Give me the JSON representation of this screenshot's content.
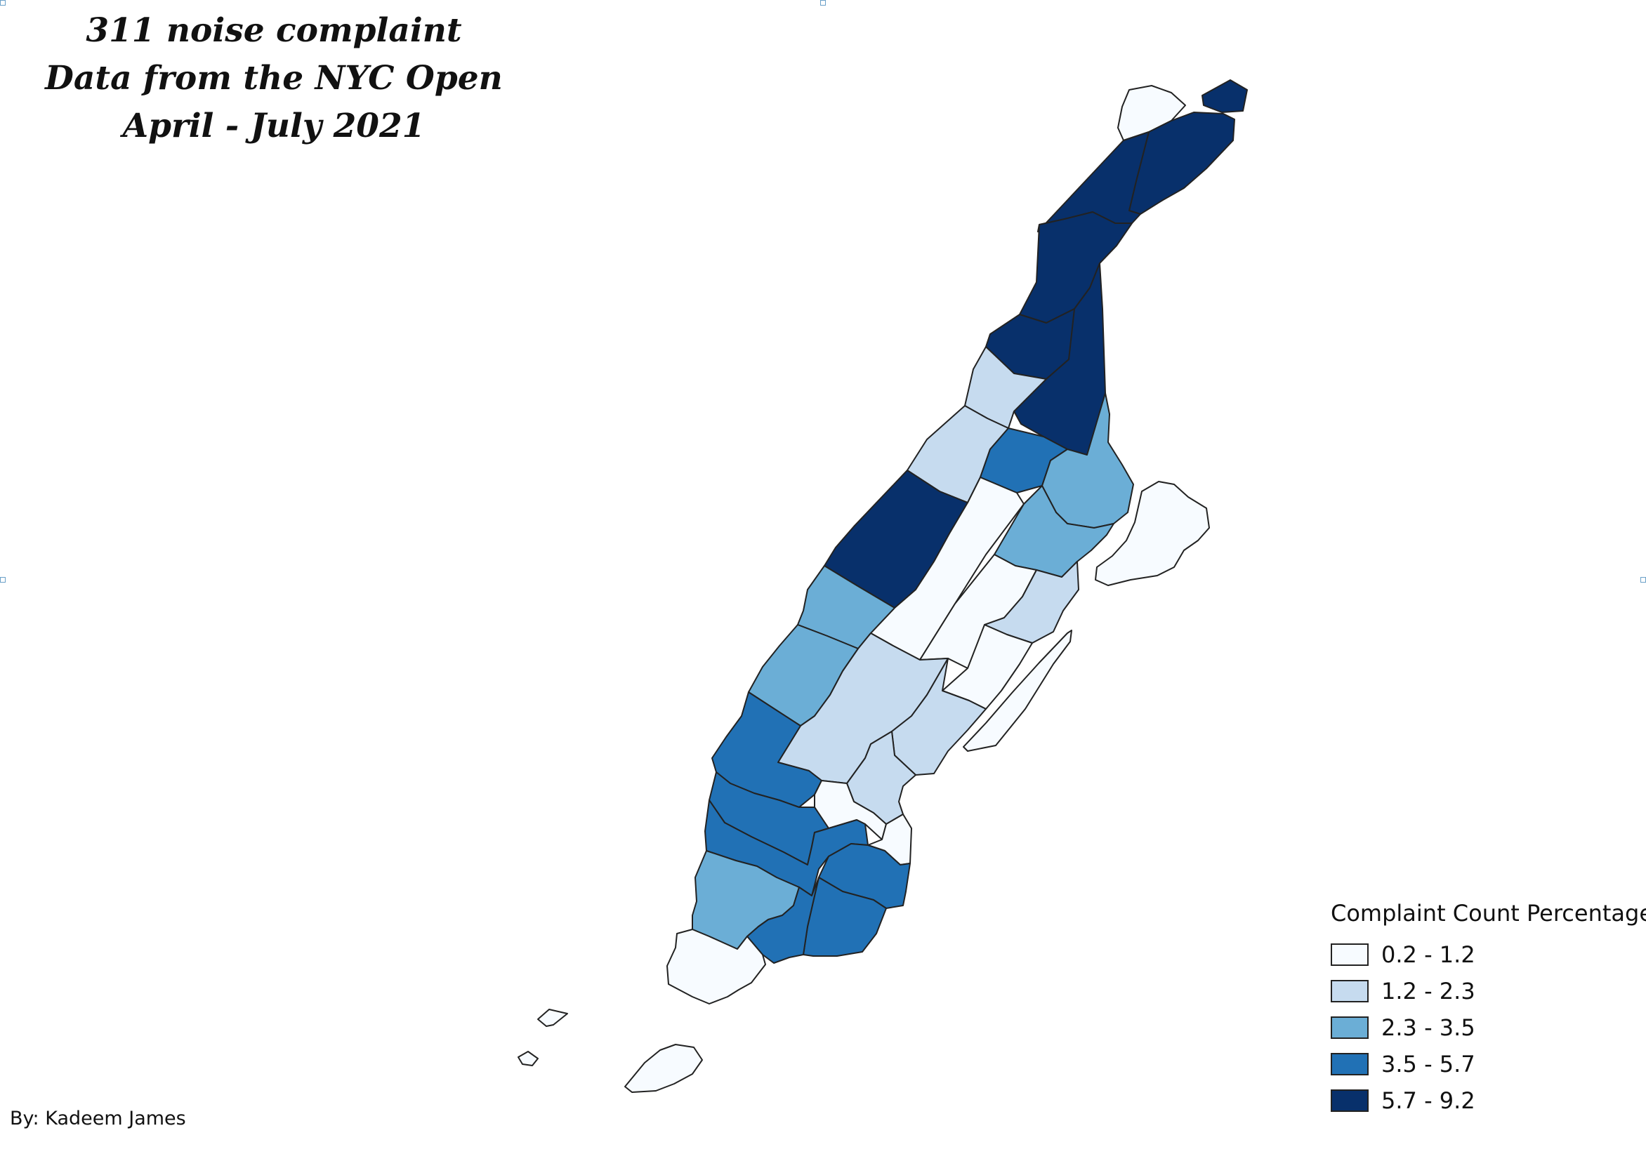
{
  "title": {
    "line1": "311 noise complaint",
    "line2": "Data from the NYC Open",
    "line3": "April - July 2021"
  },
  "legend": {
    "title": "Complaint Count Percentage",
    "classes": [
      {
        "label": "0.2 - 1.2",
        "color": "#f7fbff"
      },
      {
        "label": "1.2 - 2.3",
        "color": "#c6dbef"
      },
      {
        "label": "2.3 - 3.5",
        "color": "#6baed6"
      },
      {
        "label": "3.5 - 5.7",
        "color": "#2171b5"
      },
      {
        "label": "5.7 - 9.2",
        "color": "#08306b"
      }
    ]
  },
  "credit": "By: Kadeem James",
  "map": {
    "region": "Manhattan",
    "stroke_color": "#222222"
  }
}
